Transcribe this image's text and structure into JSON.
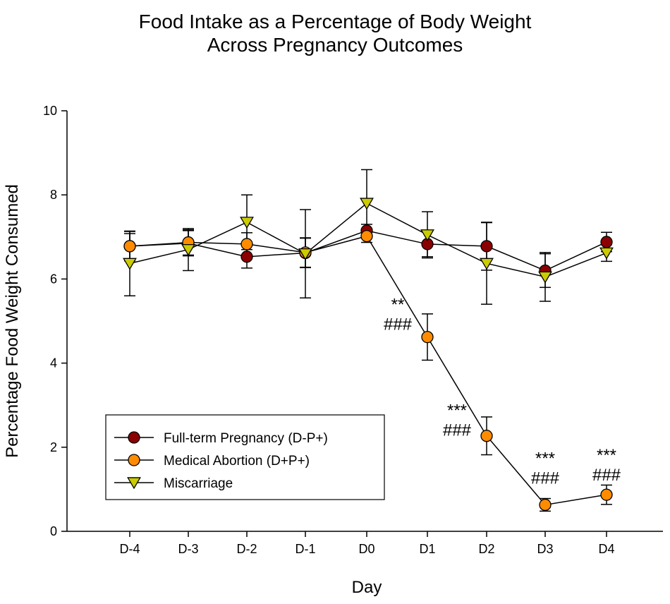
{
  "chart_data": {
    "type": "line",
    "title": [
      "Food Intake as a Percentage of Body Weight",
      "Across Pregnancy Outcomes"
    ],
    "xlabel": "Day",
    "ylabel": "Percentage Food Weight Consumed",
    "categories": [
      "D-4",
      "D-3",
      "D-2",
      "D-1",
      "D0",
      "D1",
      "D2",
      "D3",
      "D4"
    ],
    "ylim": [
      0,
      10
    ],
    "yticks": [
      0,
      2,
      4,
      6,
      8,
      10
    ],
    "grid": false,
    "legend_position": "bottom-left",
    "series": [
      {
        "name": "Full-term Pregnancy (D-P+)",
        "color": "#8B0000",
        "marker": "circle",
        "values": [
          6.78,
          6.85,
          6.53,
          6.62,
          7.15,
          6.83,
          6.78,
          6.2,
          6.88
        ],
        "errors": [
          0.35,
          0.3,
          0.27,
          0.35,
          0.15,
          0.3,
          0.57,
          0.4,
          0.23
        ]
      },
      {
        "name": "Medical Abortion (D+P+)",
        "color": "#FF8C00",
        "marker": "circle",
        "values": [
          6.78,
          6.87,
          6.83,
          6.63,
          7.02,
          4.62,
          2.27,
          0.63,
          0.87
        ],
        "errors": [
          0.3,
          0.3,
          0.27,
          0.35,
          0.15,
          0.55,
          0.45,
          0.15,
          0.23
        ]
      },
      {
        "name": "Miscarriage",
        "color": "#CCCC00",
        "marker": "triangle-down",
        "values": [
          6.37,
          6.7,
          7.35,
          6.6,
          7.8,
          7.05,
          6.37,
          6.05,
          6.62
        ],
        "errors": [
          0.77,
          0.5,
          0.65,
          1.05,
          0.8,
          0.55,
          0.97,
          0.58,
          0.2
        ]
      }
    ],
    "annotations": [
      {
        "category": "D1",
        "lines": [
          "**",
          "###"
        ]
      },
      {
        "category": "D2",
        "lines": [
          "***",
          "###"
        ]
      },
      {
        "category": "D3",
        "lines": [
          "***",
          "###"
        ]
      },
      {
        "category": "D4",
        "lines": [
          "***",
          "###"
        ]
      }
    ]
  }
}
